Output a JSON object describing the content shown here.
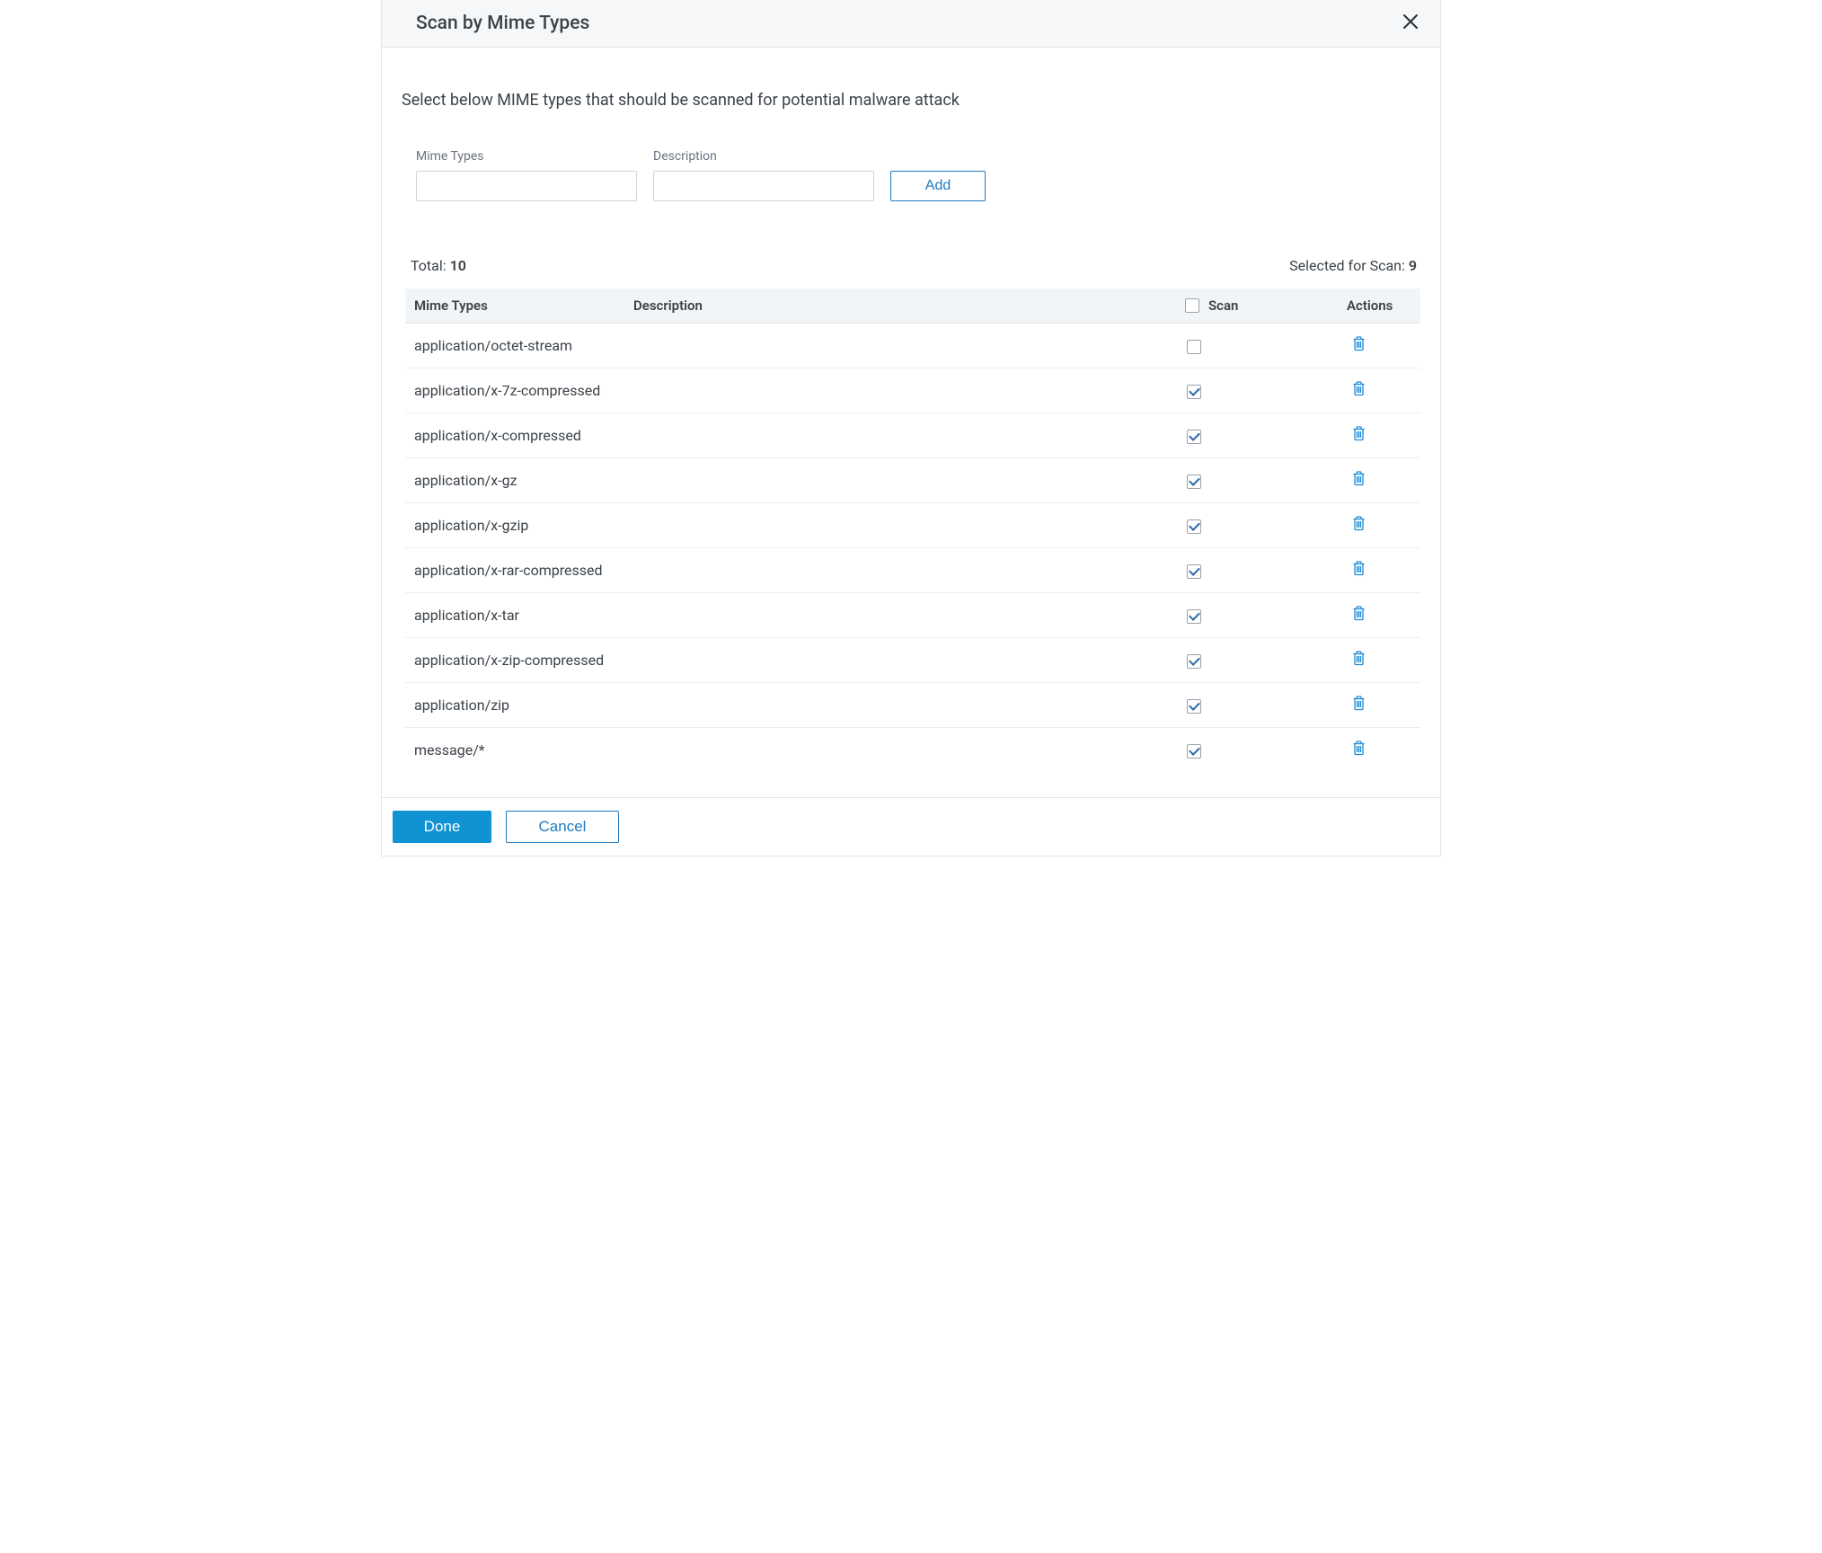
{
  "dialog": {
    "title": "Scan by Mime Types",
    "intro": "Select below MIME types that should be scanned for potential malware attack"
  },
  "form": {
    "mime_label": "Mime Types",
    "description_label": "Description",
    "add_label": "Add"
  },
  "counts": {
    "total_label": "Total: ",
    "total_value": "10",
    "selected_label": "Selected for Scan: ",
    "selected_value": "9"
  },
  "columns": {
    "mime": "Mime Types",
    "description": "Description",
    "scan": "Scan",
    "actions": "Actions"
  },
  "rows": [
    {
      "mime": "application/octet-stream",
      "description": "",
      "scan": false
    },
    {
      "mime": "application/x-7z-compressed",
      "description": "",
      "scan": true
    },
    {
      "mime": "application/x-compressed",
      "description": "",
      "scan": true
    },
    {
      "mime": "application/x-gz",
      "description": "",
      "scan": true
    },
    {
      "mime": "application/x-gzip",
      "description": "",
      "scan": true
    },
    {
      "mime": "application/x-rar-compressed",
      "description": "",
      "scan": true
    },
    {
      "mime": "application/x-tar",
      "description": "",
      "scan": true
    },
    {
      "mime": "application/x-zip-compressed",
      "description": "",
      "scan": true
    },
    {
      "mime": "application/zip",
      "description": "",
      "scan": true
    },
    {
      "mime": "message/*",
      "description": "",
      "scan": true
    }
  ],
  "footer": {
    "done": "Done",
    "cancel": "Cancel"
  },
  "colors": {
    "primary": "#0f93d2",
    "link": "#1f7bbf",
    "header_bg": "#f5f7f8",
    "table_header_bg": "#f2f5f7",
    "border": "#e5e5e5",
    "text": "#3b4249",
    "muted": "#6b7280"
  }
}
